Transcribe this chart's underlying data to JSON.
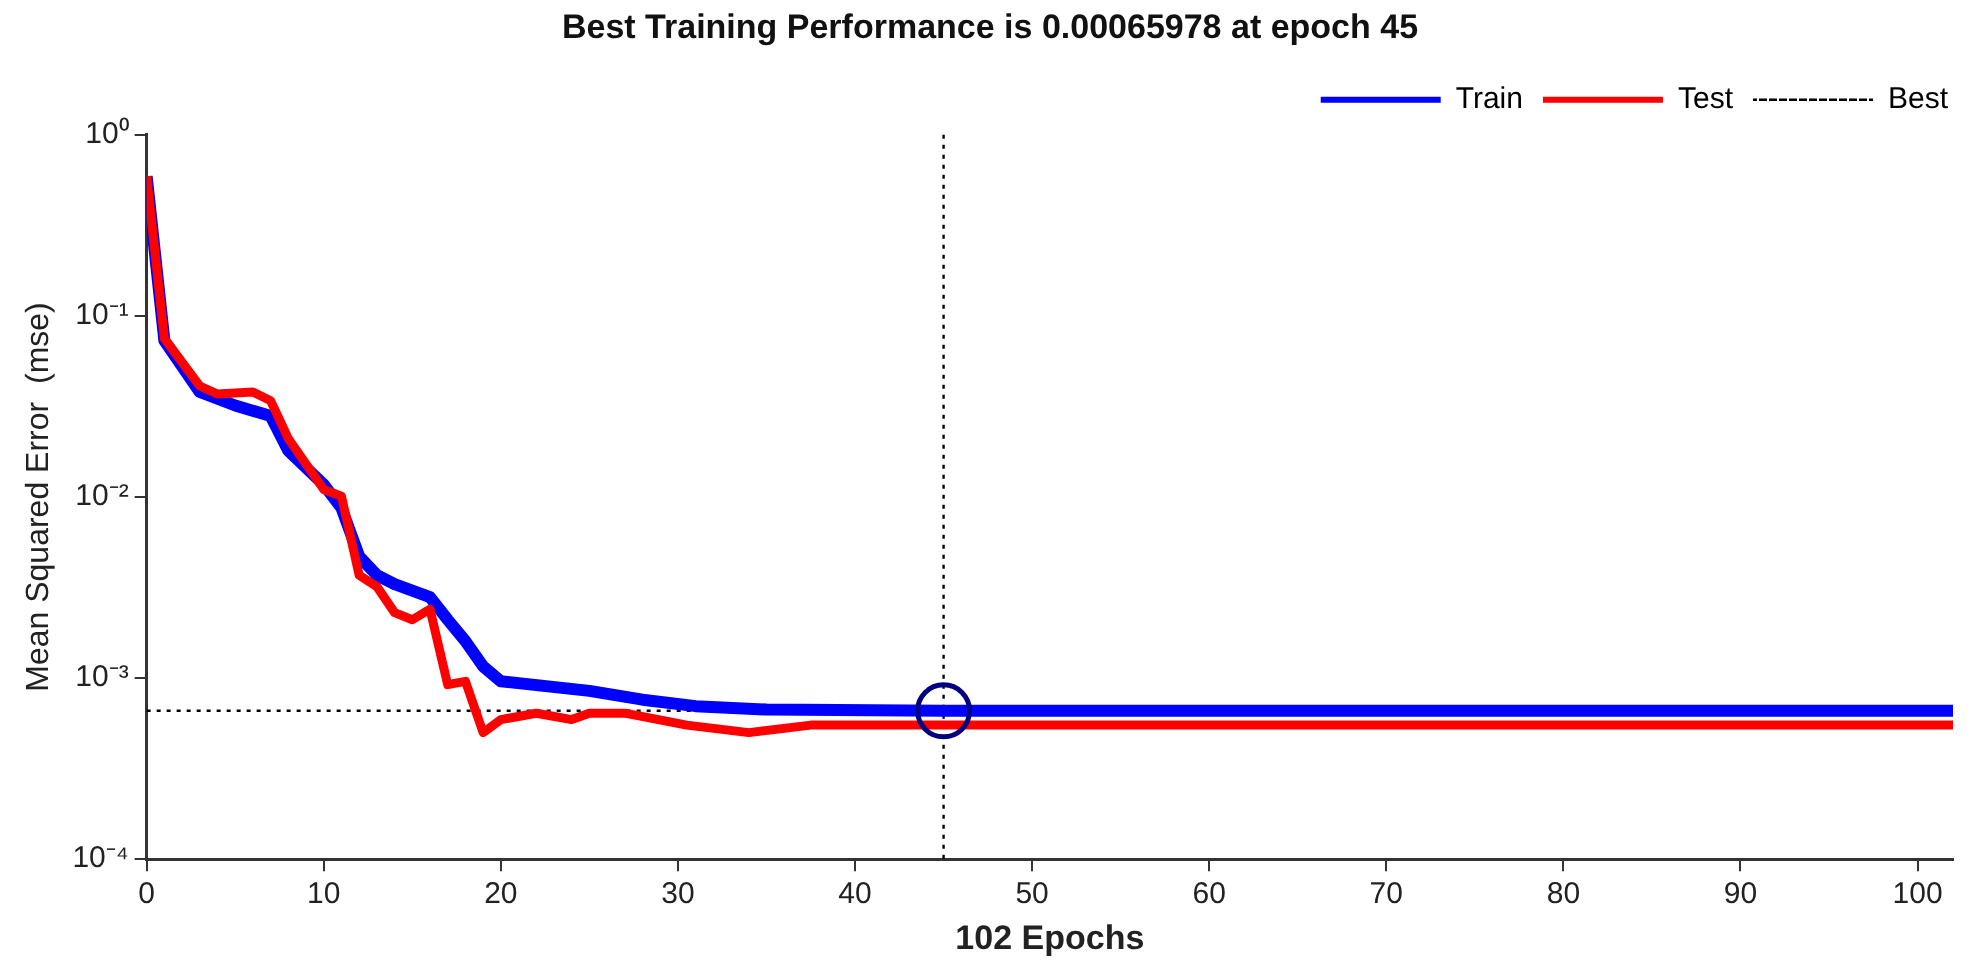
{
  "chart_data": {
    "type": "line",
    "title": "Best Training Performance is 0.00065978 at epoch 45",
    "xlabel": "102 Epochs",
    "ylabel": "Mean Squared Error  (mse)",
    "log": "y",
    "xlim": [
      0,
      102
    ],
    "xticks": [
      0,
      10,
      20,
      30,
      40,
      50,
      60,
      70,
      80,
      90,
      100
    ],
    "ylim": [
      0.0001,
      1
    ],
    "yticks": [
      {
        "value": 0.0001,
        "label": "10⁻⁴"
      },
      {
        "value": 0.001,
        "label": "10⁻³"
      },
      {
        "value": 0.01,
        "label": "10⁻²"
      },
      {
        "value": 0.1,
        "label": "10⁻¹"
      },
      {
        "value": 1,
        "label": "10⁰"
      }
    ],
    "grid": false,
    "legend": "top right",
    "marker": "none",
    "line_style": "solid",
    "series": [
      {
        "name": "Train",
        "color": "#0000ff",
        "x": [
          0,
          1,
          3,
          5,
          7,
          8,
          10,
          11,
          12,
          13,
          14,
          16,
          17,
          18,
          19,
          20,
          25,
          28,
          31,
          35,
          45,
          102
        ],
        "values": [
          0.59,
          0.073,
          0.038,
          0.032,
          0.028,
          0.018,
          0.0117,
          0.0087,
          0.0047,
          0.0037,
          0.0033,
          0.0028,
          0.0021,
          0.0016,
          0.00116,
          0.00096,
          0.00085,
          0.00076,
          0.0007,
          0.00067,
          0.00066,
          0.00066
        ]
      },
      {
        "name": "Test",
        "color": "#ff0000",
        "x": [
          0,
          1,
          3,
          4,
          6,
          7,
          8,
          10,
          11,
          12,
          13,
          14,
          15,
          16,
          17,
          18,
          19,
          20,
          22,
          24,
          25,
          27,
          30.5,
          34,
          37.5,
          43,
          102
        ],
        "values": [
          0.59,
          0.075,
          0.041,
          0.037,
          0.038,
          0.034,
          0.021,
          0.011,
          0.0101,
          0.0037,
          0.0032,
          0.0023,
          0.0021,
          0.0024,
          0.00092,
          0.00096,
          0.0005,
          0.00059,
          0.00064,
          0.00059,
          0.00064,
          0.00064,
          0.00055,
          0.0005,
          0.00055,
          0.00055,
          0.00055
        ]
      },
      {
        "type": "scatter",
        "color": "#000080",
        "marker": "circle",
        "x": [
          45
        ],
        "values": [
          0.00065978
        ]
      }
    ],
    "ref_lines": [
      {
        "axis": "x",
        "value": 45,
        "label": "Best",
        "color": "#000000",
        "line_style": "dotted"
      },
      {
        "axis": "y",
        "value": 0.00065978,
        "color": "#000000",
        "line_style": "dotted"
      }
    ]
  }
}
